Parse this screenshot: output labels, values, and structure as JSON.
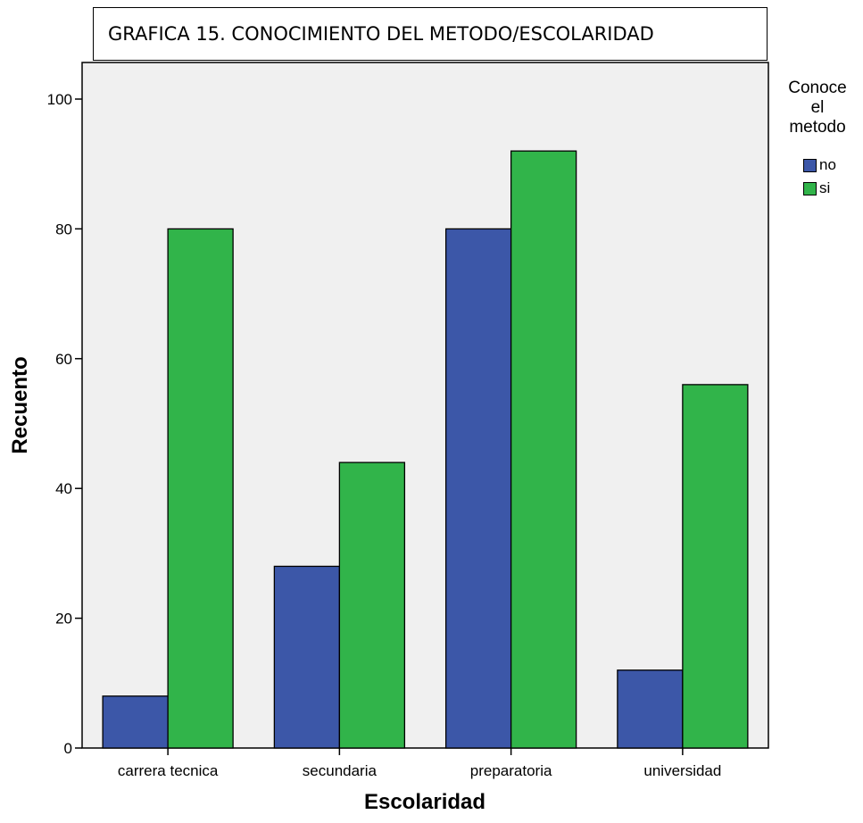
{
  "title": "GRAFICA 15. CONOCIMIENTO DEL METODO/ESCOLARIDAD",
  "legend": {
    "title_lines": [
      "Conoce",
      "el",
      "metodo"
    ],
    "placement": "right",
    "items": [
      {
        "label": "no",
        "color": "#3c57a8"
      },
      {
        "label": "si",
        "color": "#31b44a"
      }
    ]
  },
  "chart_data": {
    "type": "bar",
    "title": "GRAFICA 15. CONOCIMIENTO DEL METODO/ESCOLARIDAD",
    "xlabel": "Escolaridad",
    "ylabel": "Recuento",
    "categories": [
      "carrera tecnica",
      "secundaria",
      "preparatoria",
      "universidad"
    ],
    "series": [
      {
        "name": "no",
        "color": "#3c57a8",
        "values": [
          8,
          28,
          80,
          12
        ]
      },
      {
        "name": "si",
        "color": "#31b44a",
        "values": [
          80,
          44,
          92,
          56
        ]
      }
    ],
    "ylim": [
      0,
      100
    ],
    "yticks": [
      0,
      20,
      40,
      60,
      80,
      100
    ],
    "grid": false,
    "legend_title": "Conoce el metodo",
    "plot_background": "#f0f0f0"
  }
}
